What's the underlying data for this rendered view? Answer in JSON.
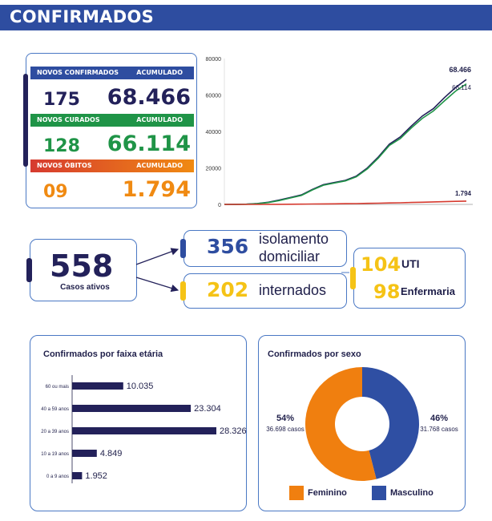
{
  "header": {
    "title": "CONFIRMADOS"
  },
  "colors": {
    "navy": "#23215a",
    "blue": "#2e4da0",
    "green": "#1f9447",
    "orange": "#f08a12",
    "red": "#d63a2f",
    "yellow": "#f5c316",
    "female": "#f07f0f",
    "male": "#2f4fa3"
  },
  "stats": {
    "confirmed": {
      "label": "NOVOS CONFIRMADOS",
      "acc_label": "ACUMULADO",
      "new": "175",
      "total": "68.466"
    },
    "cured": {
      "label": "NOVOS CURADOS",
      "acc_label": "ACUMULADO",
      "new": "128",
      "total": "66.114"
    },
    "deaths": {
      "label": "NOVOS ÓBITOS",
      "acc_label": "ACUMULADO",
      "new": "09",
      "total": "1.794"
    }
  },
  "active": {
    "total": "558",
    "label": "Casos ativos",
    "home_value": "356",
    "home_label_1": "isolamento",
    "home_label_2": "domiciliar",
    "hosp_value": "202",
    "hosp_label": "internados",
    "uti_value": "104",
    "uti_label": "UTI",
    "ward_value": "98",
    "ward_label": "Enfermaria"
  },
  "chart_data": [
    {
      "type": "line",
      "ylim": [
        0,
        80000
      ],
      "yticks": [
        "80000",
        "60000",
        "40000",
        "20000",
        "0"
      ],
      "series": [
        {
          "color": "#23215a",
          "end_label": "68.466",
          "values": [
            0,
            30,
            150,
            500,
            1200,
            2400,
            3800,
            5200,
            8200,
            10800,
            12000,
            13200,
            15500,
            20000,
            26000,
            33000,
            37000,
            43000,
            48500,
            52500,
            58500,
            64000,
            68466
          ]
        },
        {
          "color": "#1f9447",
          "end_label": "66.114",
          "values": [
            0,
            20,
            100,
            380,
            1000,
            2100,
            3500,
            4900,
            7900,
            10500,
            11700,
            12900,
            15100,
            19500,
            25400,
            32300,
            36100,
            42000,
            47200,
            51200,
            56700,
            62000,
            66114
          ]
        },
        {
          "color": "#d63a2f",
          "end_label": "1.794",
          "values": [
            0,
            0,
            5,
            15,
            30,
            60,
            100,
            140,
            200,
            260,
            320,
            380,
            450,
            550,
            650,
            780,
            900,
            1050,
            1200,
            1350,
            1500,
            1650,
            1794
          ]
        }
      ]
    },
    {
      "type": "bar",
      "title": "Confirmados por faixa etária",
      "categories": [
        "60 ou mais",
        "40 a 59 anos",
        "20 a 39 anos",
        "10 a 19 anos",
        "0 a 9 anos"
      ],
      "values": [
        10035,
        23304,
        28326,
        4849,
        1952
      ],
      "value_labels": [
        "10.035",
        "23.304",
        "28.326",
        "4.849",
        "1.952"
      ],
      "xlim": [
        0,
        28326
      ]
    },
    {
      "type": "pie",
      "title": "Confirmados por sexo",
      "series": [
        {
          "name": "Feminino",
          "value": 54,
          "pct_label": "54%",
          "cases_label": "36.698 casos"
        },
        {
          "name": "Masculino",
          "value": 46,
          "pct_label": "46%",
          "cases_label": "31.768 casos"
        }
      ]
    }
  ]
}
